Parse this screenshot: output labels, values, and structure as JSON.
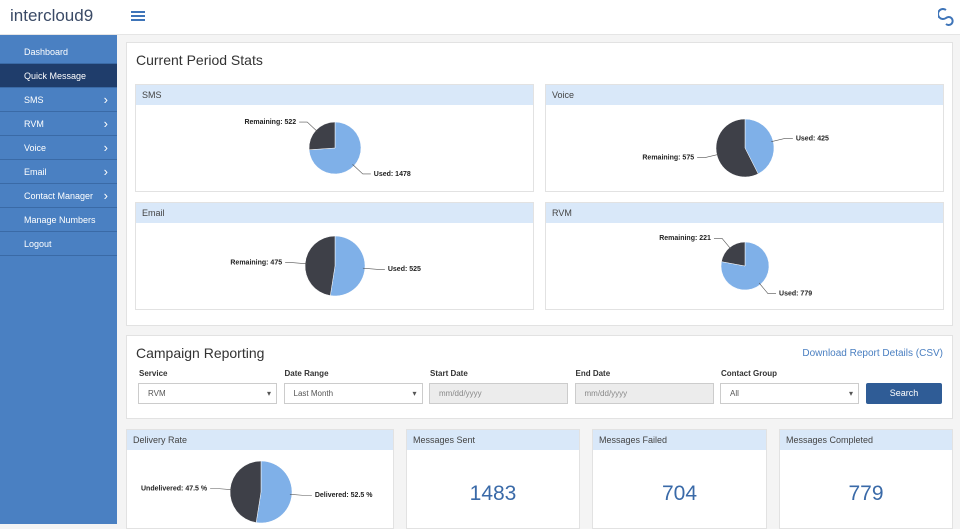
{
  "brand": "intercloud9",
  "nav": [
    "Dashboard",
    "Quick Message",
    "SMS",
    "RVM",
    "Voice",
    "Email",
    "Contact Manager",
    "Manage Numbers",
    "Logout"
  ],
  "stats": {
    "title": "Current Period Stats",
    "panels": [
      {
        "title": "SMS",
        "chart": {
          "type": "pie",
          "values": [
            1478,
            522
          ],
          "value_labels": [
            "Used: 1478",
            "Remaining: 522"
          ],
          "colors": [
            "#7fb0e8",
            "#3e4048"
          ]
        }
      },
      {
        "title": "Voice",
        "chart": {
          "type": "pie",
          "values": [
            425,
            575
          ],
          "value_labels": [
            "Used: 425",
            "Remaining: 575"
          ],
          "colors": [
            "#7fb0e8",
            "#3e4048"
          ]
        }
      },
      {
        "title": "Email",
        "chart": {
          "type": "pie",
          "values": [
            525,
            475
          ],
          "value_labels": [
            "Used: 525",
            "Remaining: 475"
          ],
          "colors": [
            "#7fb0e8",
            "#3e4048"
          ]
        }
      },
      {
        "title": "RVM",
        "chart": {
          "type": "pie",
          "values": [
            779,
            221
          ],
          "value_labels": [
            "Used: 779",
            "Remaining: 221"
          ],
          "colors": [
            "#7fb0e8",
            "#3e4048"
          ]
        }
      }
    ]
  },
  "campaign": {
    "title": "Campaign Reporting",
    "download": "Download Report Details (CSV)",
    "fields": [
      {
        "label": "Service",
        "value": "RVM"
      },
      {
        "label": "Date Range",
        "value": "Last Month"
      },
      {
        "label": "Start Date",
        "value": "mm/dd/yyyy"
      },
      {
        "label": "End Date",
        "value": "mm/dd/yyyy"
      },
      {
        "label": "Contact Group",
        "value": "All"
      }
    ],
    "button": "Search"
  },
  "delivery": {
    "title": "Delivery Rate",
    "chart": {
      "type": "pie",
      "values": [
        52.5,
        47.5
      ],
      "value_labels": [
        "Delivered: 52.5 %",
        "Undelivered: 47.5 %"
      ],
      "colors": [
        "#7fb0e8",
        "#3e4048"
      ]
    }
  },
  "counters": [
    {
      "title": "Messages Sent",
      "value": 1483
    },
    {
      "title": "Messages Failed",
      "value": 704
    },
    {
      "title": "Messages Completed",
      "value": 779
    }
  ]
}
